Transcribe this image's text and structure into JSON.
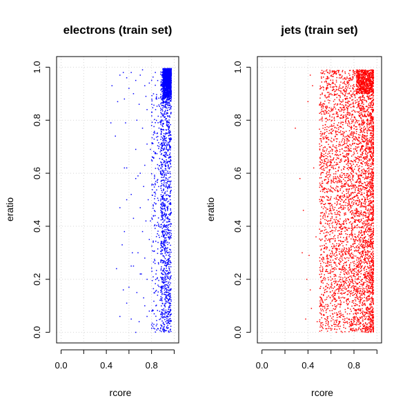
{
  "chart_data": [
    {
      "type": "scatter",
      "title": "electrons (train set)",
      "xlabel": "rcore",
      "ylabel": "eratio",
      "xlim": [
        -0.04,
        1.04
      ],
      "ylim": [
        -0.04,
        1.04
      ],
      "x_ticks": [
        "0.0",
        "0.4",
        "0.8"
      ],
      "y_ticks": [
        "0.0",
        "0.2",
        "0.4",
        "0.6",
        "0.8",
        "1.0"
      ],
      "grid": true,
      "color": "#0000ff",
      "points": [
        [
          0.45,
          0.93
        ],
        [
          0.5,
          0.87
        ],
        [
          0.52,
          0.97
        ],
        [
          0.55,
          0.98
        ],
        [
          0.58,
          0.96
        ],
        [
          0.62,
          0.98
        ],
        [
          0.6,
          0.92
        ],
        [
          0.66,
          0.95
        ],
        [
          0.7,
          0.97
        ],
        [
          0.72,
          0.99
        ],
        [
          0.74,
          0.93
        ],
        [
          0.56,
          0.88
        ],
        [
          0.64,
          0.9
        ],
        [
          0.69,
          0.86
        ],
        [
          0.75,
          0.89
        ],
        [
          0.78,
          0.94
        ],
        [
          0.44,
          0.79
        ],
        [
          0.48,
          0.74
        ],
        [
          0.57,
          0.79
        ],
        [
          0.67,
          0.8
        ],
        [
          0.72,
          0.77
        ],
        [
          0.76,
          0.71
        ],
        [
          0.79,
          0.69
        ],
        [
          0.74,
          0.63
        ],
        [
          0.68,
          0.59
        ],
        [
          0.56,
          0.62
        ],
        [
          0.58,
          0.62
        ],
        [
          0.66,
          0.58
        ],
        [
          0.62,
          0.52
        ],
        [
          0.73,
          0.55
        ],
        [
          0.77,
          0.5
        ],
        [
          0.7,
          0.47
        ],
        [
          0.52,
          0.47
        ],
        [
          0.64,
          0.43
        ],
        [
          0.75,
          0.42
        ],
        [
          0.72,
          0.38
        ],
        [
          0.78,
          0.35
        ],
        [
          0.56,
          0.38
        ],
        [
          0.54,
          0.33
        ],
        [
          0.68,
          0.3
        ],
        [
          0.74,
          0.28
        ],
        [
          0.62,
          0.25
        ],
        [
          0.64,
          0.25
        ],
        [
          0.49,
          0.24
        ],
        [
          0.7,
          0.22
        ],
        [
          0.76,
          0.2
        ],
        [
          0.55,
          0.16
        ],
        [
          0.6,
          0.17
        ],
        [
          0.67,
          0.15
        ],
        [
          0.73,
          0.13
        ],
        [
          0.58,
          0.11
        ],
        [
          0.74,
          0.1
        ],
        [
          0.78,
          0.08
        ],
        [
          0.52,
          0.06
        ],
        [
          0.62,
          0.05
        ],
        [
          0.69,
          0.04
        ],
        [
          0.76,
          0.06
        ],
        [
          0.66,
          0.0
        ],
        [
          0.71,
          0.22
        ],
        [
          0.63,
          0.3
        ],
        [
          0.58,
          0.5
        ],
        [
          0.66,
          0.69
        ],
        [
          0.7,
          0.6
        ],
        [
          0.76,
          0.84
        ],
        [
          0.8,
          0.78
        ],
        [
          0.8,
          0.65
        ],
        [
          0.79,
          0.42
        ]
      ]
    },
    {
      "type": "scatter",
      "title": "jets (train set)",
      "xlabel": "rcore",
      "ylabel": "eratio",
      "xlim": [
        -0.04,
        1.04
      ],
      "ylim": [
        -0.04,
        1.04
      ],
      "x_ticks": [
        "0.0",
        "0.4",
        "0.8"
      ],
      "y_ticks": [
        "0.0",
        "0.2",
        "0.4",
        "0.6",
        "0.8",
        "1.0"
      ],
      "grid": true,
      "color": "#ff0000",
      "points": [
        [
          0.29,
          0.77
        ],
        [
          0.33,
          0.58
        ],
        [
          0.36,
          0.46
        ],
        [
          0.39,
          0.2
        ],
        [
          0.4,
          0.87
        ],
        [
          0.42,
          0.97
        ],
        [
          0.41,
          0.29
        ],
        [
          0.43,
          0.09
        ],
        [
          0.45,
          0.62
        ],
        [
          0.47,
          0.36
        ],
        [
          0.38,
          0.05
        ],
        [
          0.44,
          0.93
        ],
        [
          0.48,
          0.04
        ],
        [
          0.35,
          0.3
        ],
        [
          0.42,
          0.16
        ]
      ]
    }
  ]
}
